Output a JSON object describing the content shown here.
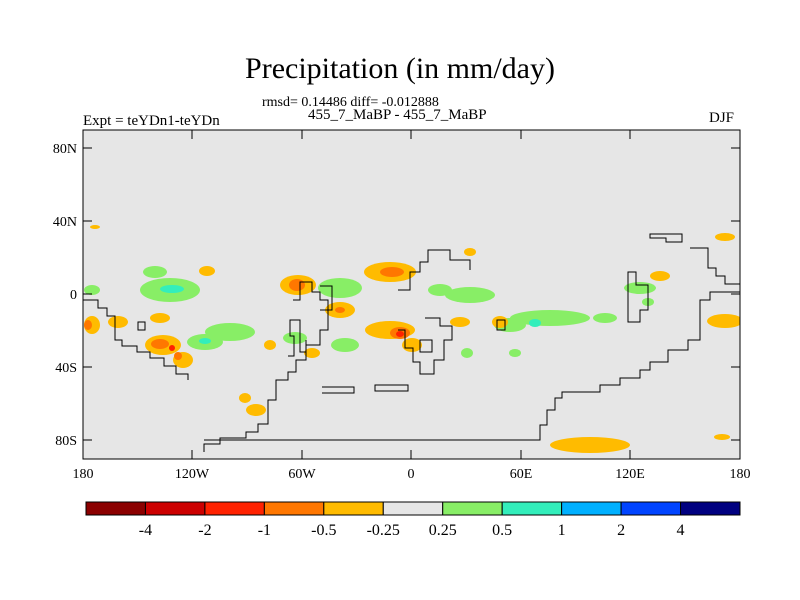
{
  "title": "Precipitation (in mm/day)",
  "stats": "rmsd= 0.14486 diff= -0.012888",
  "subtitle": "455_7_MaBP - 455_7_MaBP",
  "left_label": "Expt = teYDn1-teYDn",
  "right_label": "DJF",
  "chart_data": {
    "type": "map_contour",
    "quantity": "Precipitation difference (mm/day)",
    "season": "DJF",
    "x_ticks": [
      "180",
      "120W",
      "60W",
      "0",
      "60E",
      "120E",
      "180"
    ],
    "y_ticks": [
      "80N",
      "40N",
      "0",
      "40S",
      "80S"
    ],
    "lon_range": [
      -180,
      180
    ],
    "lat_range": [
      -90,
      90
    ],
    "colorbar": {
      "labels": [
        "-4",
        "-2",
        "-1",
        "-0.5",
        "-0.25",
        "0.25",
        "0.5",
        "1",
        "2",
        "4"
      ],
      "colors": [
        "#8b0000",
        "#cc0000",
        "#ff2200",
        "#ff7700",
        "#ffbb00",
        "#e6e6e6",
        "#88ee66",
        "#33eebb",
        "#00b0ff",
        "#0044ff",
        "#000080"
      ]
    },
    "background_color": "#e6e6e6"
  }
}
